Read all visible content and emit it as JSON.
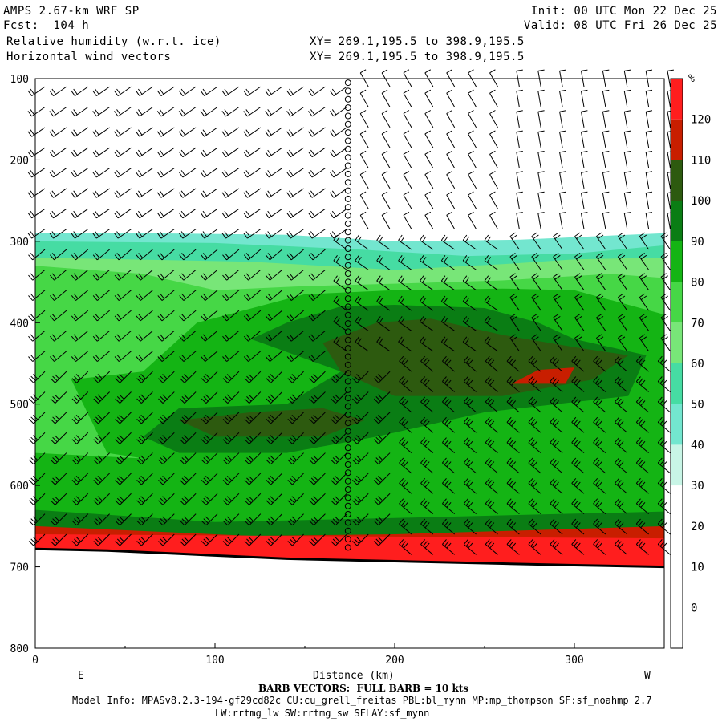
{
  "header": {
    "model": "AMPS 2.67-km WRF SP",
    "fcst": "Fcst:  104 h",
    "field1": "Relative humidity (w.r.t. ice)",
    "field2": "Horizontal wind vectors",
    "xy1": "XY= 269.1,195.5 to 398.9,195.5",
    "xy2": "XY= 269.1,195.5 to 398.9,195.5",
    "init": "Init: 00 UTC Mon 22 Dec 25",
    "valid": "Valid: 08 UTC Fri 26 Dec 25"
  },
  "footer": {
    "barb_note": "BARB VECTORS:  FULL BARB = 10 kts",
    "model_info": "Model Info: MPASv8.2.3-194-gf29cd82c CU:cu_grell_freitas PBL:bl_mynn MP:mp_thompson SF:sf_noahmp 2.7",
    "model_info2": "LW:rrtmg_lw SW:rrtmg_sw SFLAY:sf_mynn"
  },
  "chart_data": {
    "type": "heatmap",
    "xlabel": "Distance (km)",
    "ylabel": "",
    "x_left_label": "E",
    "x_right_label": "W",
    "xlim": [
      0,
      350
    ],
    "ylim": [
      800,
      100
    ],
    "xticks": [
      0,
      100,
      200,
      300
    ],
    "yticks": [
      100,
      200,
      300,
      400,
      500,
      600,
      700,
      800
    ],
    "colorbar": {
      "unit": "%",
      "levels": [
        0,
        10,
        20,
        30,
        40,
        50,
        60,
        70,
        80,
        90,
        100,
        110,
        120
      ],
      "colors": [
        "#ffffff",
        "#ffffff",
        "#ffffff",
        "#ffffff",
        "#c8f5e6",
        "#73e6cf",
        "#46dca3",
        "#78e678",
        "#46d746",
        "#14b414",
        "#0a7d14",
        "#2d5a0f",
        "#c81e00",
        "#ff1e1e"
      ]
    },
    "rh_regions": [
      {
        "value": 40,
        "points": [
          [
            0,
            290
          ],
          [
            60,
            290
          ],
          [
            140,
            292
          ],
          [
            200,
            300
          ],
          [
            270,
            298
          ],
          [
            350,
            290
          ],
          [
            350,
            680
          ],
          [
            0,
            680
          ]
        ]
      },
      {
        "value": 50,
        "points": [
          [
            0,
            300
          ],
          [
            100,
            302
          ],
          [
            180,
            310
          ],
          [
            240,
            318
          ],
          [
            300,
            315
          ],
          [
            350,
            305
          ],
          [
            350,
            680
          ],
          [
            0,
            680
          ]
        ]
      },
      {
        "value": 60,
        "points": [
          [
            0,
            320
          ],
          [
            120,
            325
          ],
          [
            200,
            335
          ],
          [
            260,
            328
          ],
          [
            300,
            322
          ],
          [
            350,
            320
          ],
          [
            350,
            680
          ],
          [
            0,
            680
          ]
        ]
      },
      {
        "value": 70,
        "points": [
          [
            0,
            330
          ],
          [
            60,
            340
          ],
          [
            100,
            360
          ],
          [
            150,
            355
          ],
          [
            200,
            352
          ],
          [
            260,
            348
          ],
          [
            320,
            340
          ],
          [
            350,
            345
          ],
          [
            350,
            680
          ],
          [
            0,
            680
          ]
        ]
      },
      {
        "value": 80,
        "points": [
          [
            20,
            470
          ],
          [
            60,
            460
          ],
          [
            90,
            400
          ],
          [
            150,
            365
          ],
          [
            200,
            360
          ],
          [
            260,
            358
          ],
          [
            300,
            360
          ],
          [
            350,
            390
          ],
          [
            350,
            620
          ],
          [
            280,
            630
          ],
          [
            200,
            590
          ],
          [
            100,
            580
          ],
          [
            40,
            560
          ]
        ]
      },
      {
        "value": 80,
        "points": [
          [
            0,
            560
          ],
          [
            350,
            600
          ],
          [
            350,
            680
          ],
          [
            0,
            680
          ]
        ]
      },
      {
        "value": 90,
        "points": [
          [
            60,
            540
          ],
          [
            80,
            505
          ],
          [
            140,
            500
          ],
          [
            170,
            460
          ],
          [
            120,
            420
          ],
          [
            140,
            400
          ],
          [
            170,
            380
          ],
          [
            200,
            378
          ],
          [
            250,
            382
          ],
          [
            280,
            400
          ],
          [
            300,
            420
          ],
          [
            340,
            440
          ],
          [
            330,
            490
          ],
          [
            250,
            510
          ],
          [
            190,
            540
          ],
          [
            140,
            560
          ],
          [
            80,
            560
          ]
        ]
      },
      {
        "value": 90,
        "points": [
          [
            0,
            630
          ],
          [
            100,
            645
          ],
          [
            200,
            640
          ],
          [
            350,
            632
          ],
          [
            350,
            680
          ],
          [
            0,
            680
          ]
        ]
      },
      {
        "value": 100,
        "points": [
          [
            80,
            520
          ],
          [
            120,
            510
          ],
          [
            160,
            505
          ],
          [
            183,
            520
          ],
          [
            160,
            540
          ],
          [
            100,
            540
          ]
        ]
      },
      {
        "value": 100,
        "points": [
          [
            160,
            425
          ],
          [
            190,
            400
          ],
          [
            220,
            395
          ],
          [
            260,
            415
          ],
          [
            300,
            430
          ],
          [
            330,
            440
          ],
          [
            310,
            470
          ],
          [
            260,
            490
          ],
          [
            200,
            490
          ],
          [
            170,
            460
          ]
        ]
      },
      {
        "value": 110,
        "points": [
          [
            265,
            475
          ],
          [
            280,
            458
          ],
          [
            300,
            455
          ],
          [
            295,
            475
          ]
        ]
      },
      {
        "value": 110,
        "points": [
          [
            0,
            650
          ],
          [
            120,
            662
          ],
          [
            200,
            660
          ],
          [
            350,
            650
          ],
          [
            350,
            675
          ],
          [
            0,
            675
          ]
        ]
      },
      {
        "value": 120,
        "points": [
          [
            0,
            660
          ],
          [
            350,
            665
          ],
          [
            350,
            700
          ],
          [
            0,
            700
          ]
        ]
      }
    ],
    "terrain_pressure": [
      [
        0,
        678
      ],
      [
        40,
        680
      ],
      [
        80,
        684
      ],
      [
        120,
        688
      ],
      [
        140,
        690
      ],
      [
        180,
        692
      ],
      [
        220,
        694
      ],
      [
        260,
        696
      ],
      [
        300,
        698
      ],
      [
        350,
        700
      ]
    ],
    "column_marker_x": 174,
    "barbs": {
      "x": [
        0,
        12,
        24,
        36,
        48,
        60,
        72,
        84,
        96,
        108,
        120,
        132,
        144,
        156,
        168,
        180,
        192,
        204,
        216,
        228,
        240,
        252,
        264,
        276,
        288,
        300,
        312,
        324,
        336,
        348
      ],
      "p_levels": [
        110,
        135,
        160,
        185,
        210,
        235,
        260,
        285,
        310,
        335,
        360,
        385,
        410,
        435,
        460,
        485,
        510,
        535,
        560,
        585,
        610,
        635,
        660,
        685
      ]
    }
  }
}
